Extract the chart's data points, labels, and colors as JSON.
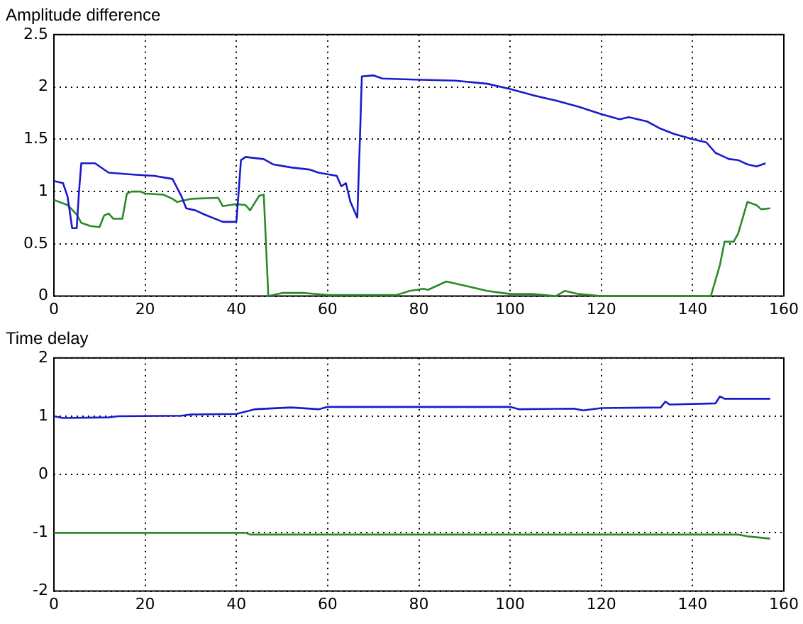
{
  "chart_data": [
    {
      "type": "line",
      "title": "Amplitude difference",
      "xlim": [
        0,
        160
      ],
      "xticks": [
        0,
        20,
        40,
        60,
        80,
        100,
        120,
        140,
        160
      ],
      "ylim": [
        0,
        2.5
      ],
      "yticks": [
        0,
        0.5,
        1,
        1.5,
        2,
        2.5
      ],
      "grid": true,
      "marker": "none",
      "line_style": "solid",
      "series": [
        {
          "color": "#1a1acc",
          "x": [
            0,
            2,
            3,
            4,
            5,
            5.5,
            6,
            9,
            12,
            18,
            22,
            26,
            28,
            29,
            31,
            33,
            37,
            40,
            40.5,
            41,
            42,
            46,
            48,
            52,
            56,
            58,
            62,
            63,
            64,
            65,
            66.5,
            67,
            67.5,
            70,
            72,
            79,
            88,
            95,
            100,
            105,
            110,
            115,
            120,
            124,
            126,
            128,
            130,
            133,
            136,
            140,
            143,
            145,
            148,
            150,
            152,
            154,
            156
          ],
          "values": [
            1.1,
            1.08,
            0.95,
            0.65,
            0.65,
            1.0,
            1.27,
            1.27,
            1.18,
            1.16,
            1.15,
            1.12,
            0.95,
            0.84,
            0.82,
            0.78,
            0.71,
            0.71,
            1.0,
            1.3,
            1.33,
            1.31,
            1.26,
            1.23,
            1.21,
            1.18,
            1.15,
            1.05,
            1.08,
            0.9,
            0.75,
            1.4,
            2.1,
            2.11,
            2.08,
            2.07,
            2.06,
            2.03,
            1.98,
            1.92,
            1.87,
            1.81,
            1.74,
            1.69,
            1.71,
            1.69,
            1.67,
            1.6,
            1.55,
            1.5,
            1.47,
            1.37,
            1.31,
            1.3,
            1.26,
            1.24,
            1.27
          ]
        },
        {
          "color": "#2a8a2a",
          "x": [
            0,
            3,
            5,
            6,
            8,
            10,
            11,
            12,
            13,
            15,
            16,
            17,
            19,
            20,
            24,
            26,
            27,
            30,
            36,
            37,
            40,
            42,
            43,
            45,
            46,
            47,
            50,
            55,
            60,
            70,
            75,
            78,
            81,
            82,
            86,
            90,
            95,
            100,
            105,
            110,
            112,
            115,
            120,
            140,
            144,
            146,
            147,
            149,
            150,
            152,
            154,
            155,
            157
          ],
          "values": [
            0.92,
            0.87,
            0.78,
            0.7,
            0.67,
            0.66,
            0.77,
            0.79,
            0.74,
            0.74,
            0.98,
            1.0,
            1.0,
            0.98,
            0.97,
            0.93,
            0.9,
            0.93,
            0.94,
            0.86,
            0.88,
            0.87,
            0.82,
            0.96,
            0.97,
            0.0,
            0.03,
            0.03,
            0.01,
            0.01,
            0.01,
            0.05,
            0.07,
            0.06,
            0.14,
            0.1,
            0.05,
            0.02,
            0.02,
            0.0,
            0.05,
            0.02,
            0.0,
            0.0,
            0.0,
            0.3,
            0.52,
            0.52,
            0.6,
            0.9,
            0.87,
            0.83,
            0.84
          ]
        }
      ]
    },
    {
      "type": "line",
      "title": "Time delay",
      "xlim": [
        0,
        160
      ],
      "xticks": [
        0,
        20,
        40,
        60,
        80,
        100,
        120,
        140,
        160
      ],
      "ylim": [
        -2,
        2
      ],
      "yticks": [
        -2,
        -1,
        0,
        1,
        2
      ],
      "grid": true,
      "marker": "none",
      "line_style": "solid",
      "series": [
        {
          "color": "#1a1acc",
          "x": [
            0,
            2,
            12,
            14,
            28,
            30,
            40,
            42,
            44,
            52,
            58,
            60,
            100,
            102,
            114,
            116,
            120,
            133,
            134,
            135,
            145,
            146,
            147,
            157
          ],
          "values": [
            1.0,
            0.97,
            0.98,
            1.0,
            1.01,
            1.03,
            1.04,
            1.08,
            1.12,
            1.15,
            1.12,
            1.16,
            1.16,
            1.12,
            1.13,
            1.1,
            1.14,
            1.15,
            1.25,
            1.2,
            1.22,
            1.34,
            1.3,
            1.3
          ]
        },
        {
          "color": "#2a8a2a",
          "x": [
            0,
            42,
            43,
            150,
            152,
            157
          ],
          "values": [
            -1.0,
            -1.0,
            -1.03,
            -1.03,
            -1.06,
            -1.1
          ]
        }
      ]
    }
  ]
}
